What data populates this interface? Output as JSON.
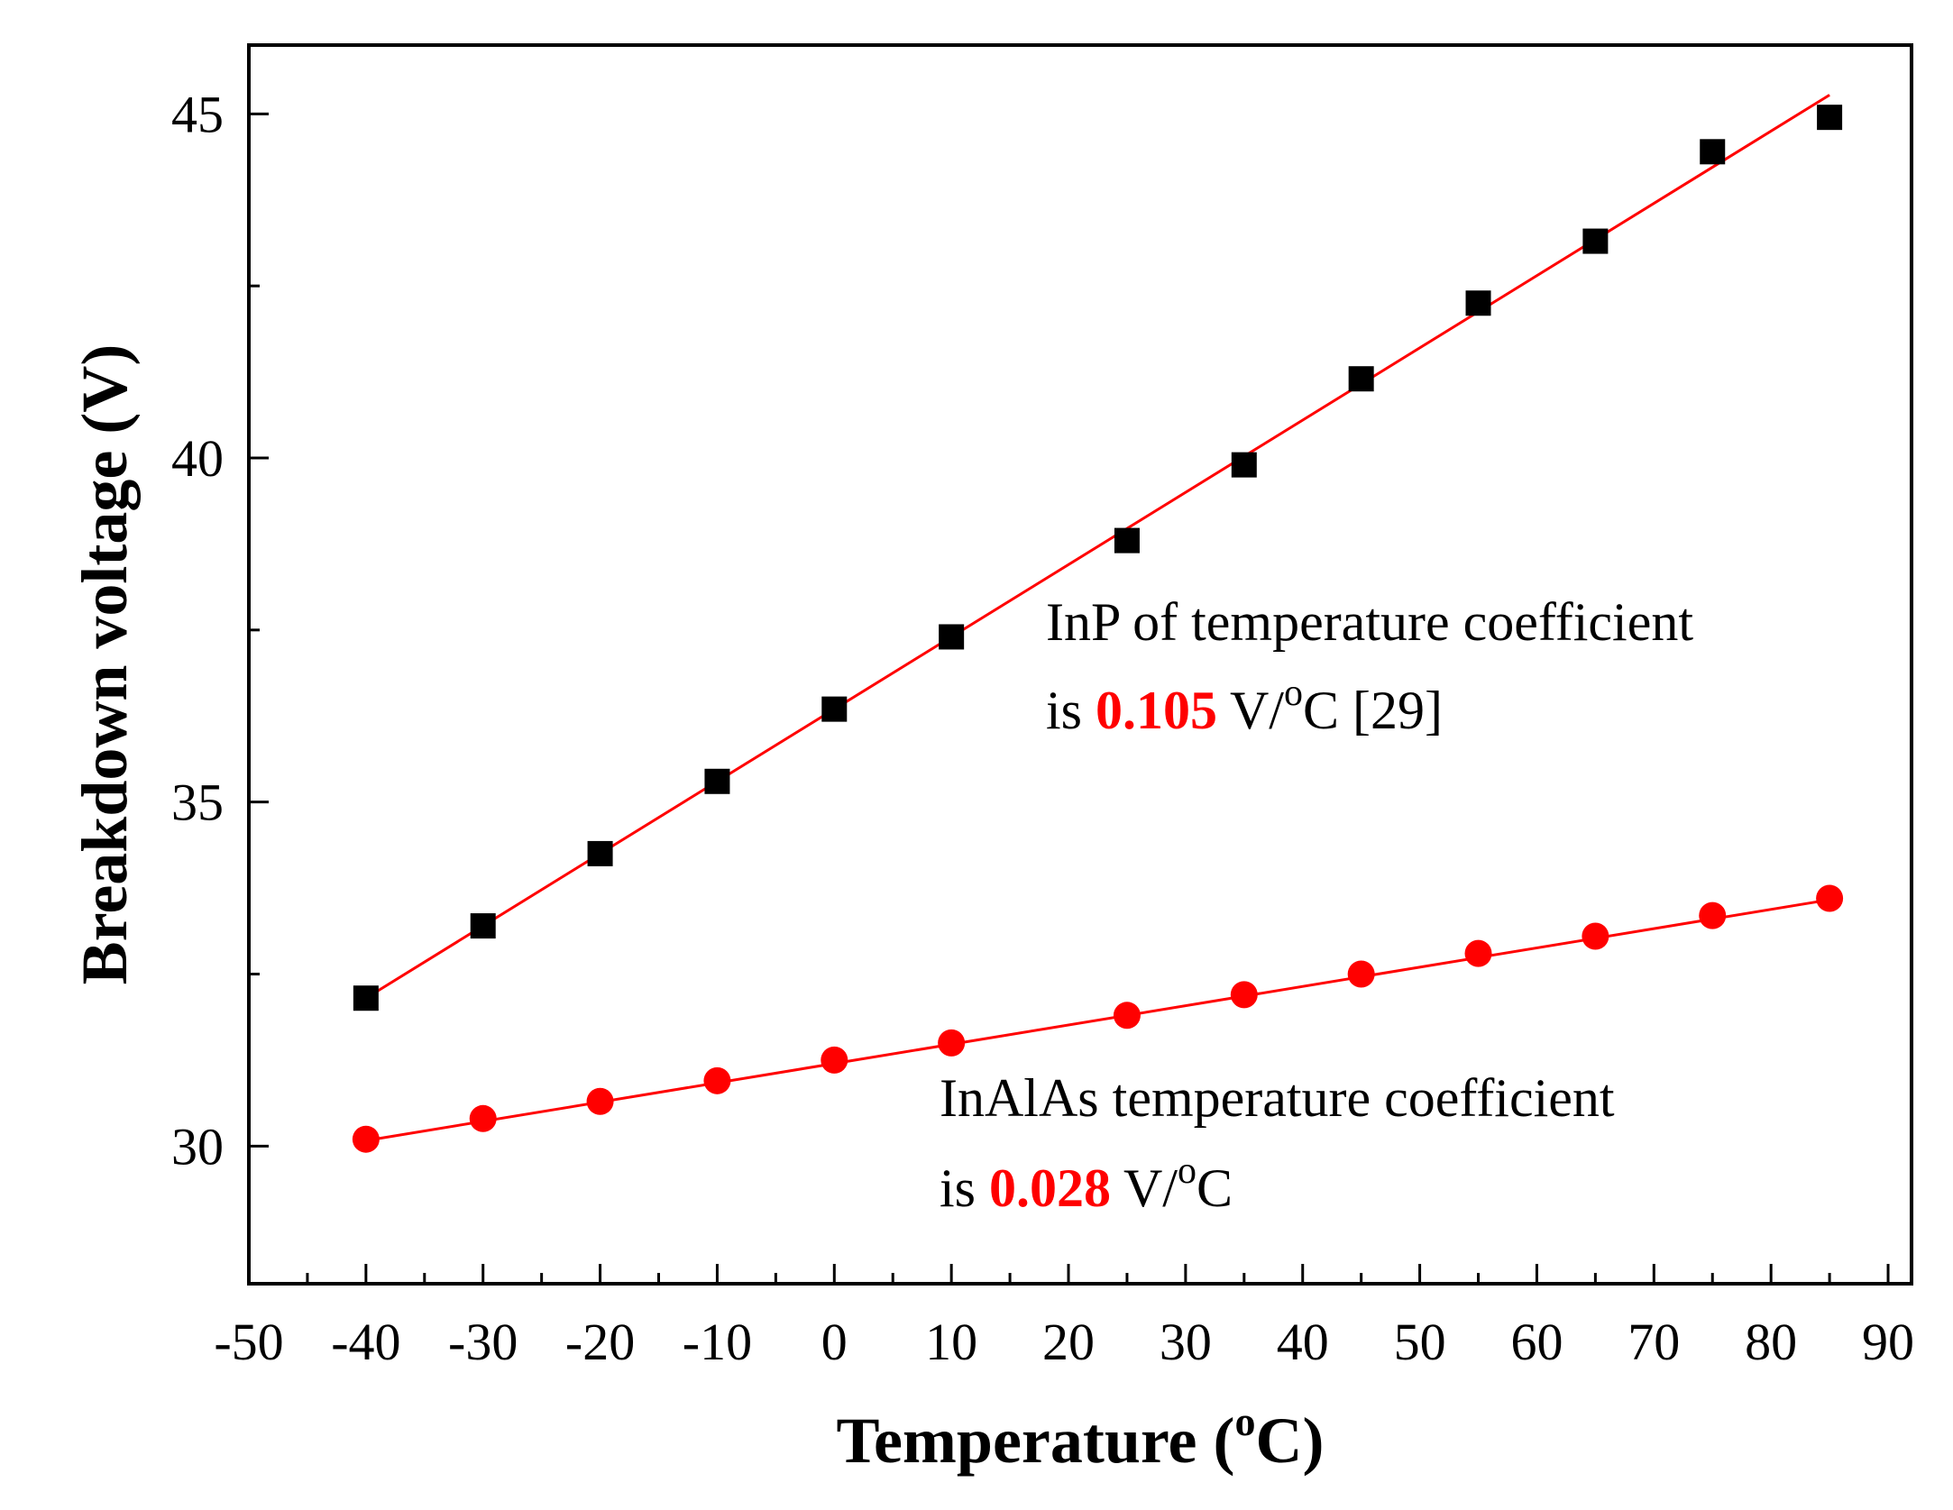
{
  "chart_data": {
    "type": "scatter",
    "title": "",
    "xlabel": "Temperature",
    "xlabel_unit": "(oC)",
    "xlabel_unit_parts": {
      "open": "(",
      "sup": "o",
      "close": "C)"
    },
    "ylabel": "Breakdown voltage (V)",
    "xlim": [
      -50,
      92
    ],
    "ylim": [
      28,
      46
    ],
    "x_ticks": [
      -50,
      -40,
      -30,
      -20,
      -10,
      0,
      10,
      20,
      30,
      40,
      50,
      60,
      70,
      80,
      90
    ],
    "x_tick_labels": [
      "-50",
      "-40",
      "-30",
      "-20",
      "-10",
      "0",
      "10",
      "20",
      "30",
      "40",
      "50",
      "60",
      "70",
      "80",
      "90"
    ],
    "y_ticks": [
      30,
      35,
      40,
      45
    ],
    "y_tick_labels": [
      "30",
      "35",
      "40",
      "45"
    ],
    "grid": false,
    "series": [
      {
        "name": "InP",
        "marker": "square",
        "color": "#000000",
        "fit_color": "#ff0000",
        "x": [
          -40,
          -30,
          -20,
          -10,
          0,
          10,
          25,
          35,
          45,
          55,
          65,
          75,
          85
        ],
        "y": [
          32.15,
          33.2,
          34.25,
          35.3,
          36.35,
          37.4,
          38.8,
          39.9,
          41.15,
          42.25,
          43.15,
          44.45,
          44.95
        ],
        "fit": {
          "slope": 0.105,
          "intercept": 36.35,
          "x_range": [
            -40,
            85
          ]
        }
      },
      {
        "name": "InAlAs",
        "marker": "circle",
        "color": "#ff0000",
        "fit_color": "#ff0000",
        "x": [
          -40,
          -30,
          -20,
          -10,
          0,
          10,
          25,
          35,
          45,
          55,
          65,
          75,
          85
        ],
        "y": [
          30.1,
          30.4,
          30.65,
          30.95,
          31.25,
          31.5,
          31.9,
          32.2,
          32.5,
          32.8,
          33.05,
          33.35,
          33.6
        ],
        "fit": {
          "slope": 0.028,
          "intercept": 31.2,
          "x_range": [
            -40,
            85
          ]
        }
      }
    ],
    "annotations": [
      {
        "line1": "InP of temperature coefficient",
        "line2_prefix": "is ",
        "value": "0.105",
        "unit_prefix": " V/",
        "unit_sup": "o",
        "unit_suffix": "C [29]",
        "value_color": "#ff0000"
      },
      {
        "line1": "InAlAs temperature coefficient",
        "line2_prefix": "is ",
        "value": "0.028",
        "unit_prefix": " V/",
        "unit_sup": "o",
        "unit_suffix": "C",
        "value_color": "#ff0000"
      }
    ]
  }
}
